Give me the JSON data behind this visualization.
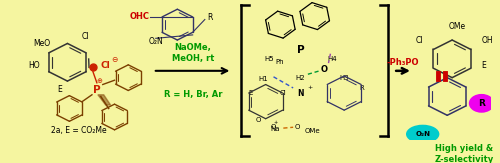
{
  "background_color": "#F5F5A0",
  "fig_width": 5.0,
  "fig_height": 1.63,
  "dpi": 100,
  "left_label": "2a, E = CO₂Me",
  "conditions_line1": "NaOMe,",
  "conditions_line2": "MeOH, rt",
  "conditions_line3": "R = H, Br, Ar",
  "minus_ph3po": "-Ph₃PO",
  "minus_color": "#CC0000",
  "high_yield_line1": "High yield &",
  "high_yield_line2": "Z-selectivity",
  "green_color": "#009900",
  "ohc_color": "#CC0000",
  "ring_color_dark": "#333333",
  "ring_color_blue": "#333366",
  "ring_color_brown": "#7B3F00",
  "red_dot_color": "#CC2200",
  "cyan_color": "#00CCCC",
  "magenta_color": "#EE00EE",
  "orange_color": "#CC6600",
  "purple_color": "#9944AA",
  "green_dash_color": "#009933",
  "blue_dash_color": "#3355CC"
}
